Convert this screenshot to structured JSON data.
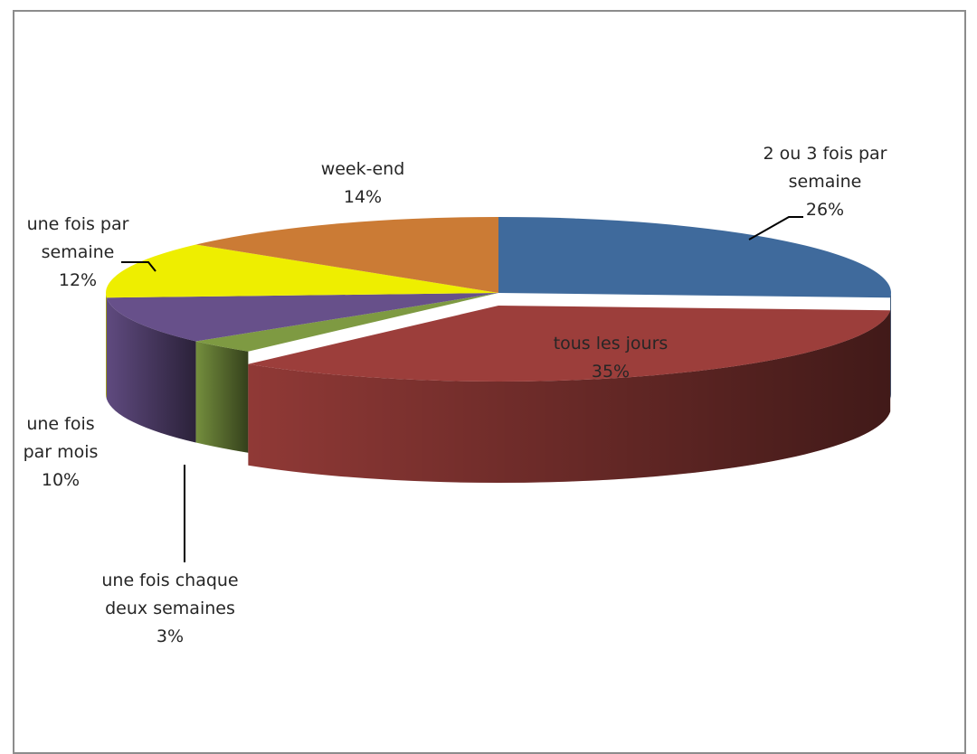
{
  "chart_data": {
    "type": "pie",
    "subtype": "3d-exploded-pie",
    "title": "",
    "legend": "none",
    "unit": "%",
    "slices": [
      {
        "name": "2 ou 3 fois par semaine",
        "label_lines": [
          "2 ou 3 fois par",
          "semaine"
        ],
        "value_label": "26%",
        "value": 26,
        "color": "#3F6A9C"
      },
      {
        "name": "tous les jours",
        "label_lines": [
          "tous les jours"
        ],
        "value_label": "35%",
        "value": 35,
        "color": "#9C3E3B"
      },
      {
        "name": "une fois chaque deux semaines",
        "label_lines": [
          "une fois chaque",
          "deux semaines"
        ],
        "value_label": "3%",
        "value": 3,
        "color": "#7E9A42"
      },
      {
        "name": "une fois par mois",
        "label_lines": [
          "une fois",
          "par mois"
        ],
        "value_label": "10%",
        "value": 10,
        "color": "#67508A"
      },
      {
        "name": "une fois par semaine",
        "label_lines": [
          "une fois par",
          "semaine"
        ],
        "value_label": "12%",
        "value": 12,
        "color": "#EEEE00"
      },
      {
        "name": "week-end",
        "label_lines": [
          "week-end"
        ],
        "value_label": "14%",
        "value": 14,
        "color": "#CB7B35"
      }
    ]
  }
}
